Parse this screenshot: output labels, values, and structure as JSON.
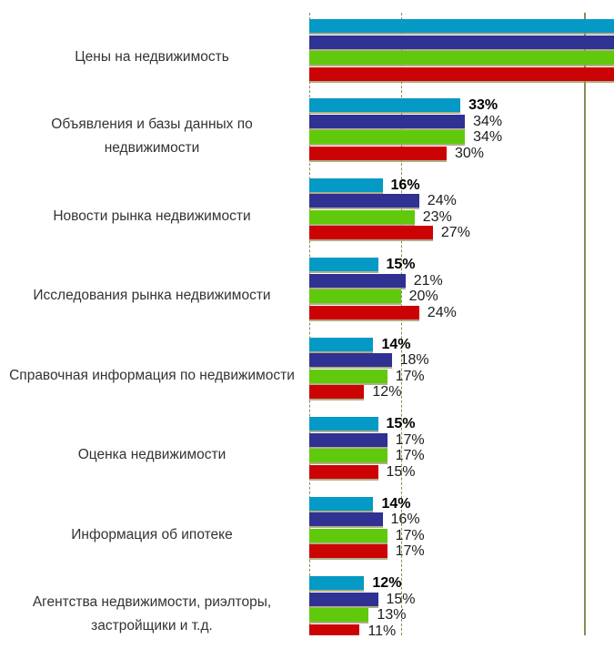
{
  "chart_data": {
    "type": "bar",
    "orientation": "horizontal-grouped",
    "title": "",
    "xlabel": "",
    "ylabel": "",
    "legend": "none",
    "value_suffix": "%",
    "axis_visible_range_pct": [
      0,
      60
    ],
    "gridlines_dashed_at_pct": [
      0,
      20
    ],
    "solid_axis_line_at_pct": 60,
    "grid_on": true,
    "categories": [
      "Цены на недвижимость",
      "Объявления и базы данных по недвижимости",
      "Новости рынка недвижимости",
      "Исследования рынка недвижимости",
      "Справочная информация по недвижимости",
      "Оценка недвижимости",
      "Информация об ипотеке",
      "Агентства недвижимости, риэлторы, застройщики и т.д."
    ],
    "first_category_bars_overflow_right_edge": true,
    "first_category_value_labels_visible": false,
    "last_category_red_bar_and_label_clipped_at_bottom": true,
    "series": [
      {
        "name": "series-cyan",
        "color": "#0599c6",
        "label_bold": true,
        "values": [
          null,
          33,
          16,
          15,
          14,
          15,
          14,
          12
        ]
      },
      {
        "name": "series-navy",
        "color": "#2f3193",
        "label_bold": false,
        "values": [
          null,
          34,
          24,
          21,
          18,
          17,
          16,
          15
        ]
      },
      {
        "name": "series-green",
        "color": "#61c90b",
        "label_bold": false,
        "values": [
          null,
          34,
          23,
          20,
          17,
          17,
          17,
          13
        ]
      },
      {
        "name": "series-red",
        "color": "#cb0304",
        "label_bold": false,
        "values": [
          null,
          30,
          27,
          24,
          12,
          15,
          17,
          11
        ]
      }
    ],
    "colors": {
      "background": "#ffffff",
      "gridline": "#8c8a58",
      "bar_shadow": "#96935f",
      "value_label_text": "#1c1c1c",
      "category_label_text": "#333333"
    }
  }
}
